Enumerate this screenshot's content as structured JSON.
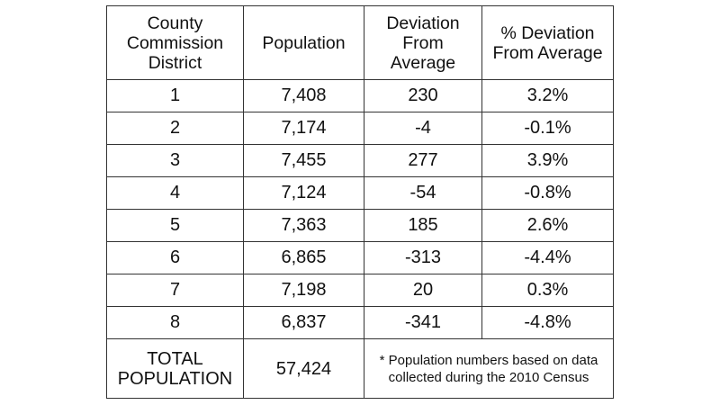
{
  "table": {
    "headers": {
      "district": [
        "County",
        "Commission",
        "District"
      ],
      "population": [
        "Population"
      ],
      "deviation": [
        "Deviation",
        "From",
        "Average"
      ],
      "pct_deviation": [
        "% Deviation",
        "From Average"
      ]
    },
    "rows": [
      {
        "district": "1",
        "population": "7,408",
        "deviation": "230",
        "pct_deviation": "3.2%"
      },
      {
        "district": "2",
        "population": "7,174",
        "deviation": "-4",
        "pct_deviation": "-0.1%"
      },
      {
        "district": "3",
        "population": "7,455",
        "deviation": "277",
        "pct_deviation": "3.9%"
      },
      {
        "district": "4",
        "population": "7,124",
        "deviation": "-54",
        "pct_deviation": "-0.8%"
      },
      {
        "district": "5",
        "population": "7,363",
        "deviation": "185",
        "pct_deviation": "2.6%"
      },
      {
        "district": "6",
        "population": "6,865",
        "deviation": "-313",
        "pct_deviation": "-4.4%"
      },
      {
        "district": "7",
        "population": "7,198",
        "deviation": "20",
        "pct_deviation": "0.3%"
      },
      {
        "district": "8",
        "population": "6,837",
        "deviation": "-341",
        "pct_deviation": "-4.8%"
      }
    ],
    "total": {
      "label": [
        "TOTAL",
        "POPULATION"
      ],
      "population": "57,424",
      "note": [
        "* Population numbers based on data",
        "collected during the 2010 Census"
      ]
    }
  }
}
